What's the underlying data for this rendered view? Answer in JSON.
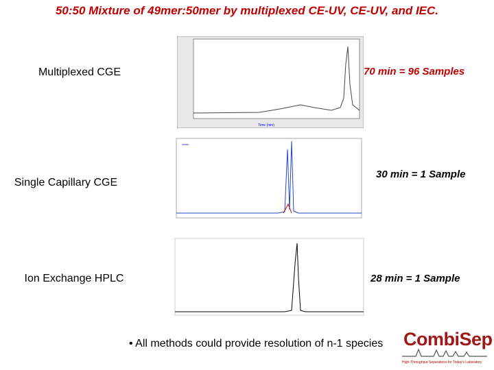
{
  "header": {
    "title": "50:50 Mixture of 49mer:50mer by multiplexed CE-UV, CE-UV, and IEC."
  },
  "rows": [
    {
      "method": "Multiplexed CGE",
      "throughput": "70 min = 96 Samples"
    },
    {
      "method": "Single Capillary CGE",
      "throughput": "30 min = 1 Sample"
    },
    {
      "method": "Ion Exchange HPLC",
      "throughput": "28 min = 1 Sample"
    }
  ],
  "bullet": "All methods could provide resolution of n-1 species",
  "logo": {
    "name": "CombiSep",
    "tagline": "High-Throughput Separations for Today's Laboratory"
  }
}
